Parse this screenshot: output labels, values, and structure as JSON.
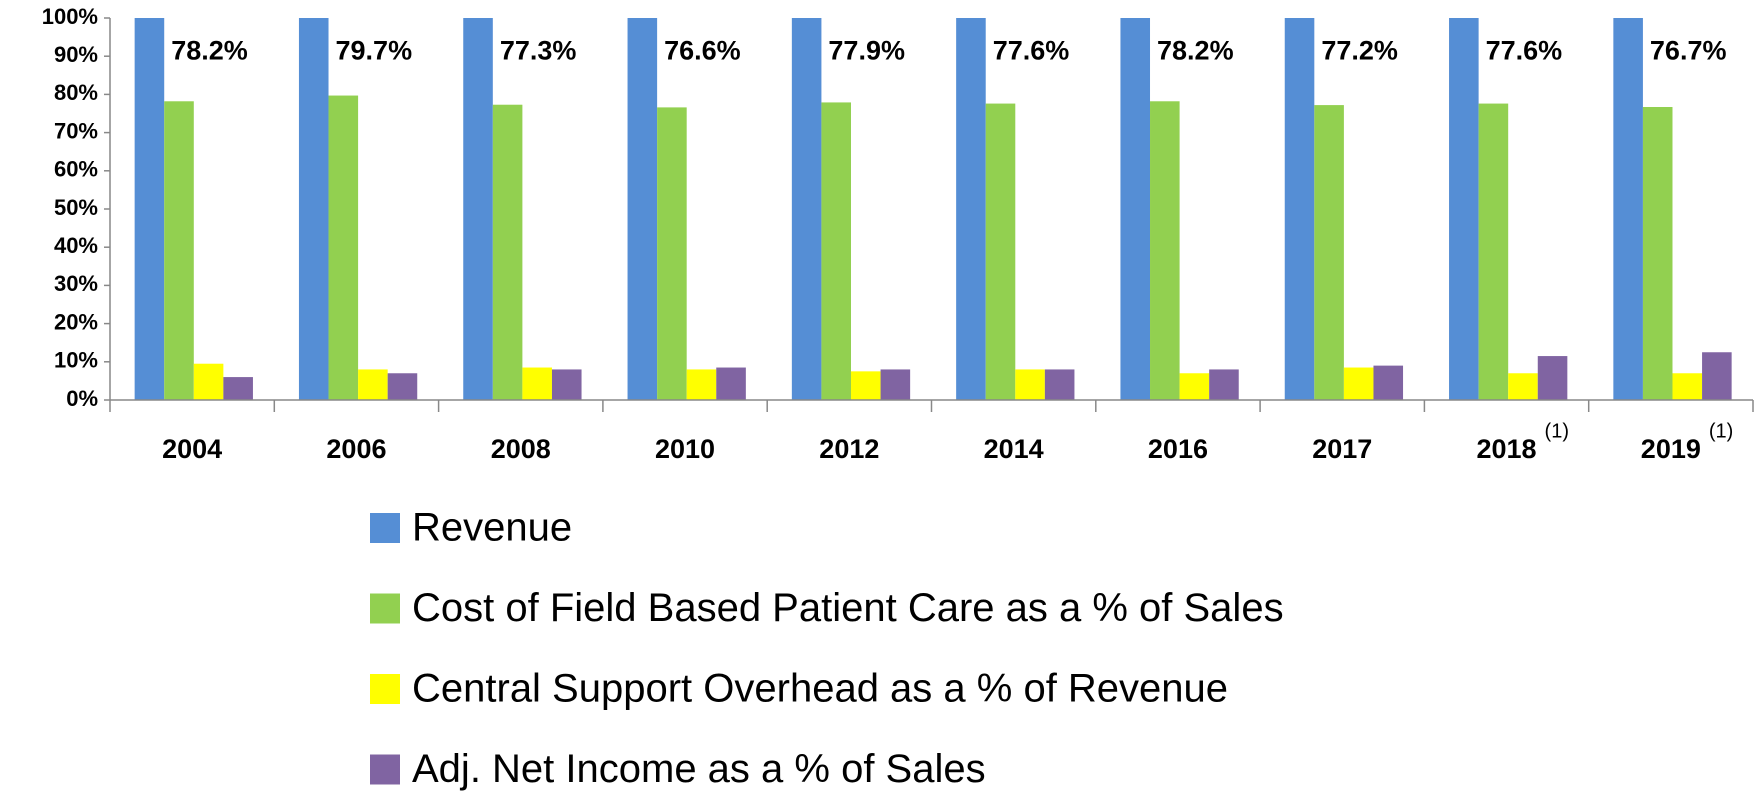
{
  "chart_data": {
    "type": "bar",
    "categories": [
      "2004",
      "2006",
      "2008",
      "2010",
      "2012",
      "2014",
      "2016",
      "2017",
      "2018",
      "2019"
    ],
    "category_notes": [
      null,
      null,
      null,
      null,
      null,
      null,
      null,
      null,
      "(1)",
      "(1)"
    ],
    "series": [
      {
        "name": "Revenue",
        "color": "#558ed5",
        "values": [
          100,
          100,
          100,
          100,
          100,
          100,
          100,
          100,
          100,
          100
        ]
      },
      {
        "name": "Cost of Field Based Patient Care as a % of Sales",
        "color": "#92d050",
        "values": [
          78.2,
          79.7,
          77.3,
          76.6,
          77.9,
          77.6,
          78.2,
          77.2,
          77.6,
          76.7
        ],
        "value_labels": [
          "78.2%",
          "79.7%",
          "77.3%",
          "76.6%",
          "77.9%",
          "77.6%",
          "78.2%",
          "77.2%",
          "77.6%",
          "76.7%"
        ]
      },
      {
        "name": "Central Support Overhead as a % of Revenue",
        "color": "#ffff00",
        "values": [
          9.5,
          8,
          8.5,
          8,
          7.5,
          8,
          7,
          8.5,
          7,
          7
        ]
      },
      {
        "name": "Adj. Net Income as a % of Sales",
        "color": "#8064a2",
        "values": [
          6,
          7,
          8,
          8.5,
          8,
          8,
          8,
          9,
          11.5,
          12.5
        ]
      }
    ],
    "ylim": [
      0,
      100
    ],
    "yticks": [
      {
        "value": 0,
        "label": "0%"
      },
      {
        "value": 10,
        "label": "10%"
      },
      {
        "value": 20,
        "label": "20%"
      },
      {
        "value": 30,
        "label": "30%"
      },
      {
        "value": 40,
        "label": "40%"
      },
      {
        "value": 50,
        "label": "50%"
      },
      {
        "value": 60,
        "label": "60%"
      },
      {
        "value": 70,
        "label": "70%"
      },
      {
        "value": 80,
        "label": "80%"
      },
      {
        "value": 90,
        "label": "90%"
      },
      {
        "value": 100,
        "label": "100%"
      }
    ],
    "grid": false,
    "legend": "bottom"
  }
}
